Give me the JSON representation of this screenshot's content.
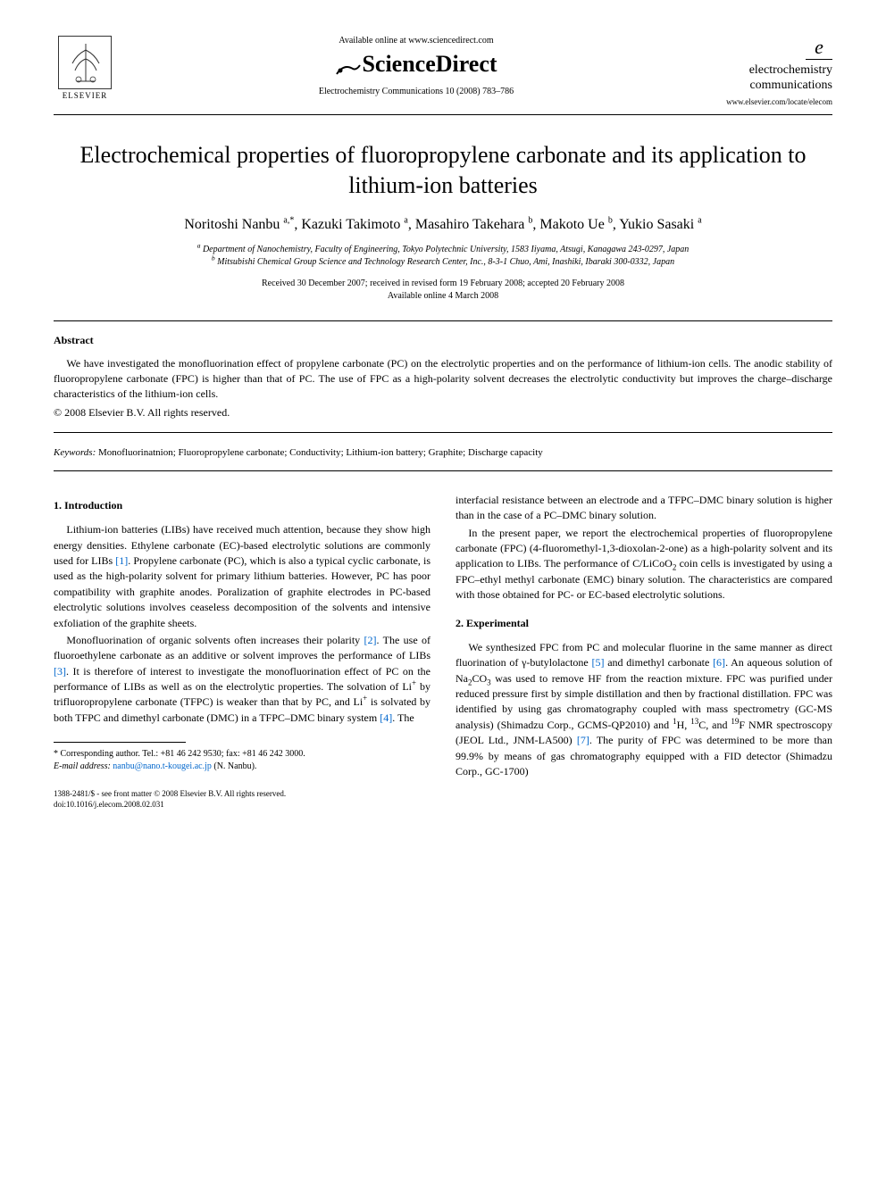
{
  "header": {
    "elsevier_label": "ELSEVIER",
    "available_online": "Available online at www.sciencedirect.com",
    "sciencedirect": "ScienceDirect",
    "journal_ref": "Electrochemistry Communications 10 (2008) 783–786",
    "journal_logo_e": "e",
    "journal_logo_line1": "electrochemistry",
    "journal_logo_line2": "communications",
    "journal_url": "www.elsevier.com/locate/elecom"
  },
  "title": "Electrochemical properties of fluoropropylene carbonate and its application to lithium-ion batteries",
  "authors_html": "Noritoshi Nanbu <sup>a,*</sup>, Kazuki Takimoto <sup>a</sup>, Masahiro Takehara <sup>b</sup>, Makoto Ue <sup>b</sup>, Yukio Sasaki <sup>a</sup>",
  "affiliations": {
    "a": "Department of Nanochemistry, Faculty of Engineering, Tokyo Polytechnic University, 1583 Iiyama, Atsugi, Kanagawa 243-0297, Japan",
    "b": "Mitsubishi Chemical Group Science and Technology Research Center, Inc., 8-3-1 Chuo, Ami, Inashiki, Ibaraki 300-0332, Japan"
  },
  "dates": {
    "received": "Received 30 December 2007; received in revised form 19 February 2008; accepted 20 February 2008",
    "available": "Available online 4 March 2008"
  },
  "abstract": {
    "heading": "Abstract",
    "text": "We have investigated the monofluorination effect of propylene carbonate (PC) on the electrolytic properties and on the performance of lithium-ion cells. The anodic stability of fluoropropylene carbonate (FPC) is higher than that of PC. The use of FPC as a high-polarity solvent decreases the electrolytic conductivity but improves the charge–discharge characteristics of the lithium-ion cells.",
    "copyright": "© 2008 Elsevier B.V. All rights reserved."
  },
  "keywords": {
    "label": "Keywords:",
    "text": "Monofluorinatnion; Fluoropropylene carbonate; Conductivity; Lithium-ion battery; Graphite; Discharge capacity"
  },
  "body": {
    "left": {
      "h1": "1. Introduction",
      "p1": "Lithium-ion batteries (LIBs) have received much attention, because they show high energy densities. Ethylene carbonate (EC)-based electrolytic solutions are commonly used for LIBs [1]. Propylene carbonate (PC), which is also a typical cyclic carbonate, is used as the high-polarity solvent for primary lithium batteries. However, PC has poor compatibility with graphite anodes. Poralization of graphite electrodes in PC-based electrolytic solutions involves ceaseless decomposition of the solvents and intensive exfoliation of the graphite sheets.",
      "p2": "Monofluorination of organic solvents often increases their polarity [2]. The use of fluoroethylene carbonate as an additive or solvent improves the performance of LIBs [3]. It is therefore of interest to investigate the monofluorination effect of PC on the performance of LIBs as well as on the electrolytic properties. The solvation of Li⁺ by trifluoropropylene carbonate (TFPC) is weaker than that by PC, and Li⁺ is solvated by both TFPC and dimethyl carbonate (DMC) in a TFPC–DMC binary system [4]. The"
    },
    "right": {
      "p1": "interfacial resistance between an electrode and a TFPC–DMC binary solution is higher than in the case of a PC–DMC binary solution.",
      "p2": "In the present paper, we report the electrochemical properties of fluoropropylene carbonate (FPC) (4-fluoromethyl-1,3-dioxolan-2-one) as a high-polarity solvent and its application to LIBs. The performance of C/LiCoO₂ coin cells is investigated by using a FPC–ethyl methyl carbonate (EMC) binary solution. The characteristics are compared with those obtained for PC- or EC-based electrolytic solutions.",
      "h2": "2. Experimental",
      "p3": "We synthesized FPC from PC and molecular fluorine in the same manner as direct fluorination of γ-butylolactone [5] and dimethyl carbonate [6]. An aqueous solution of Na₂CO₃ was used to remove HF from the reaction mixture. FPC was purified under reduced pressure first by simple distillation and then by fractional distillation. FPC was identified by using gas chromatography coupled with mass spectrometry (GC-MS analysis) (Shimadzu Corp., GCMS-QP2010) and ¹H, ¹³C, and ¹⁹F NMR spectroscopy (JEOL Ltd., JNM-LA500) [7]. The purity of FPC was determined to be more than 99.9% by means of gas chromatography equipped with a FID detector (Shimadzu Corp., GC-1700)"
    }
  },
  "footnotes": {
    "corresponding": "Corresponding author. Tel.: +81 46 242 9530; fax: +81 46 242 3000.",
    "email_label": "E-mail address:",
    "email": "nanbu@nano.t-kougei.ac.jp",
    "email_name": "(N. Nanbu)."
  },
  "footer": {
    "line1": "1388-2481/$ - see front matter © 2008 Elsevier B.V. All rights reserved.",
    "line2": "doi:10.1016/j.elecom.2008.02.031"
  },
  "refs": {
    "r1": "[1]",
    "r2": "[2]",
    "r3": "[3]",
    "r4": "[4]",
    "r5": "[5]",
    "r6": "[6]",
    "r7": "[7]"
  },
  "colors": {
    "text": "#000000",
    "link": "#0066cc",
    "background": "#ffffff"
  },
  "typography": {
    "title_fontsize": 26,
    "body_fontsize": 12,
    "affiliation_fontsize": 10,
    "font_family": "serif"
  }
}
